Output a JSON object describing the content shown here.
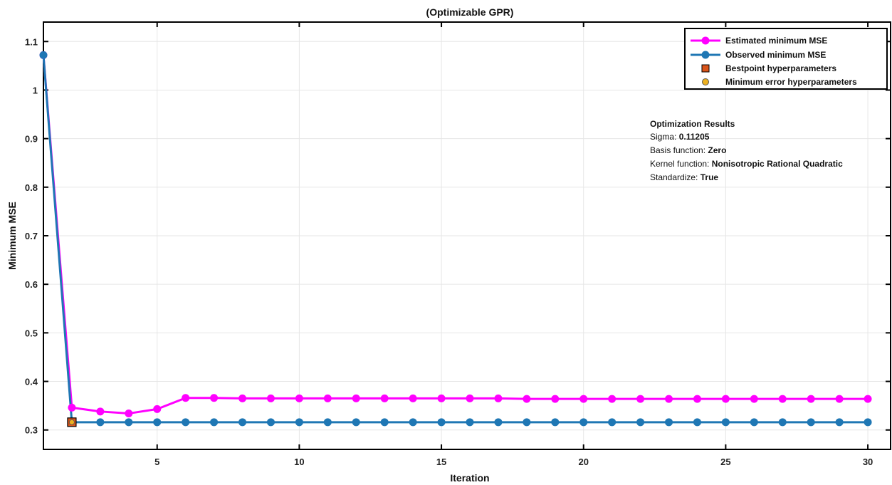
{
  "chart_data": {
    "type": "line",
    "title": "(Optimizable GPR)",
    "xlabel": "Iteration",
    "ylabel": "Minimum MSE",
    "xlim": [
      1,
      30.8
    ],
    "ylim": [
      0.26,
      1.14
    ],
    "x_ticks": [
      5,
      10,
      15,
      20,
      25,
      30
    ],
    "y_ticks": [
      0.3,
      0.4,
      0.5,
      0.6,
      0.7,
      0.8,
      0.9,
      1,
      1.1
    ],
    "grid": true,
    "legend_position": "top-right",
    "x": [
      1,
      2,
      3,
      4,
      5,
      6,
      7,
      8,
      9,
      10,
      11,
      12,
      13,
      14,
      15,
      16,
      17,
      18,
      19,
      20,
      21,
      22,
      23,
      24,
      25,
      26,
      27,
      28,
      29,
      30
    ],
    "series": [
      {
        "name": "Estimated minimum MSE",
        "color": "#ff00ff",
        "marker": "circle",
        "values": [
          1.072,
          0.346,
          0.338,
          0.334,
          0.343,
          0.366,
          0.366,
          0.365,
          0.365,
          0.365,
          0.365,
          0.365,
          0.365,
          0.365,
          0.365,
          0.365,
          0.365,
          0.364,
          0.364,
          0.364,
          0.364,
          0.364,
          0.364,
          0.364,
          0.364,
          0.364,
          0.364,
          0.364,
          0.364,
          0.364
        ]
      },
      {
        "name": "Observed minimum MSE",
        "color": "#1f77b4",
        "marker": "circle",
        "values": [
          1.072,
          0.316,
          0.316,
          0.316,
          0.316,
          0.316,
          0.316,
          0.316,
          0.316,
          0.316,
          0.316,
          0.316,
          0.316,
          0.316,
          0.316,
          0.316,
          0.316,
          0.316,
          0.316,
          0.316,
          0.316,
          0.316,
          0.316,
          0.316,
          0.316,
          0.316,
          0.316,
          0.316,
          0.316,
          0.316
        ]
      }
    ],
    "bestpoint": {
      "name": "Bestpoint hyperparameters",
      "x": 2,
      "y": 0.316,
      "color": "#d9541a",
      "marker": "square"
    },
    "minimum_error": {
      "name": "Minimum error hyperparameters",
      "x": 2,
      "y": 0.316,
      "color": "#edb120",
      "marker": "circle"
    }
  },
  "results": {
    "heading": "Optimization Results",
    "sigma_label": "Sigma:",
    "sigma_value": "0.11205",
    "basis_label": "Basis function:",
    "basis_value": "Zero",
    "kernel_label": "Kernel function:",
    "kernel_value": "Nonisotropic Rational Quadratic",
    "standardize_label": "Standardize:",
    "standardize_value": "True"
  }
}
